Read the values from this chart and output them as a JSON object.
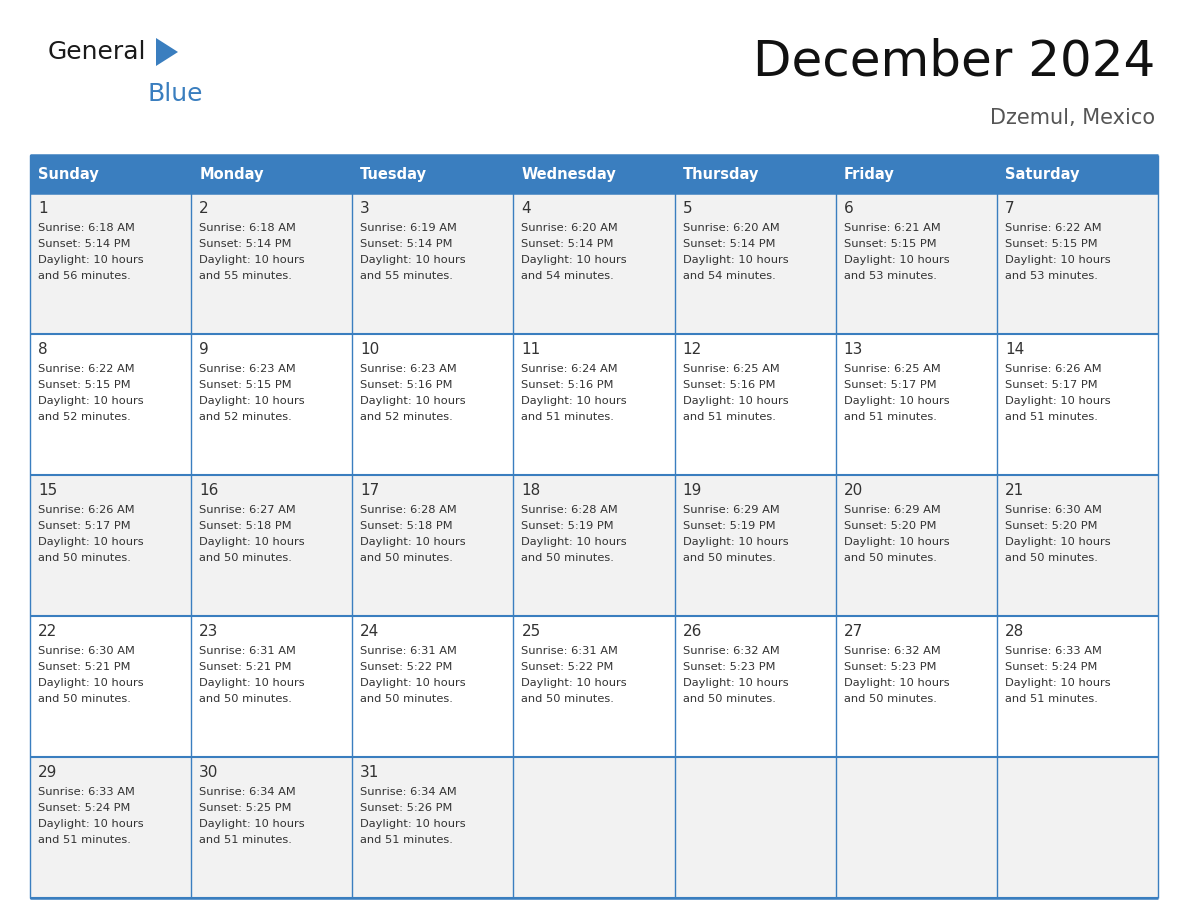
{
  "title": "December 2024",
  "subtitle": "Dzemul, Mexico",
  "header_color": "#3a7ebf",
  "header_text_color": "#ffffff",
  "day_names": [
    "Sunday",
    "Monday",
    "Tuesday",
    "Wednesday",
    "Thursday",
    "Friday",
    "Saturday"
  ],
  "row_bg_even": "#f2f2f2",
  "row_bg_odd": "#ffffff",
  "border_color": "#3a7ebf",
  "text_color": "#333333",
  "days": [
    {
      "day": 1,
      "col": 0,
      "row": 0,
      "sunrise": "6:18 AM",
      "sunset": "5:14 PM",
      "dl_hours": 10,
      "dl_minutes": 56
    },
    {
      "day": 2,
      "col": 1,
      "row": 0,
      "sunrise": "6:18 AM",
      "sunset": "5:14 PM",
      "dl_hours": 10,
      "dl_minutes": 55
    },
    {
      "day": 3,
      "col": 2,
      "row": 0,
      "sunrise": "6:19 AM",
      "sunset": "5:14 PM",
      "dl_hours": 10,
      "dl_minutes": 55
    },
    {
      "day": 4,
      "col": 3,
      "row": 0,
      "sunrise": "6:20 AM",
      "sunset": "5:14 PM",
      "dl_hours": 10,
      "dl_minutes": 54
    },
    {
      "day": 5,
      "col": 4,
      "row": 0,
      "sunrise": "6:20 AM",
      "sunset": "5:14 PM",
      "dl_hours": 10,
      "dl_minutes": 54
    },
    {
      "day": 6,
      "col": 5,
      "row": 0,
      "sunrise": "6:21 AM",
      "sunset": "5:15 PM",
      "dl_hours": 10,
      "dl_minutes": 53
    },
    {
      "day": 7,
      "col": 6,
      "row": 0,
      "sunrise": "6:22 AM",
      "sunset": "5:15 PM",
      "dl_hours": 10,
      "dl_minutes": 53
    },
    {
      "day": 8,
      "col": 0,
      "row": 1,
      "sunrise": "6:22 AM",
      "sunset": "5:15 PM",
      "dl_hours": 10,
      "dl_minutes": 52
    },
    {
      "day": 9,
      "col": 1,
      "row": 1,
      "sunrise": "6:23 AM",
      "sunset": "5:15 PM",
      "dl_hours": 10,
      "dl_minutes": 52
    },
    {
      "day": 10,
      "col": 2,
      "row": 1,
      "sunrise": "6:23 AM",
      "sunset": "5:16 PM",
      "dl_hours": 10,
      "dl_minutes": 52
    },
    {
      "day": 11,
      "col": 3,
      "row": 1,
      "sunrise": "6:24 AM",
      "sunset": "5:16 PM",
      "dl_hours": 10,
      "dl_minutes": 51
    },
    {
      "day": 12,
      "col": 4,
      "row": 1,
      "sunrise": "6:25 AM",
      "sunset": "5:16 PM",
      "dl_hours": 10,
      "dl_minutes": 51
    },
    {
      "day": 13,
      "col": 5,
      "row": 1,
      "sunrise": "6:25 AM",
      "sunset": "5:17 PM",
      "dl_hours": 10,
      "dl_minutes": 51
    },
    {
      "day": 14,
      "col": 6,
      "row": 1,
      "sunrise": "6:26 AM",
      "sunset": "5:17 PM",
      "dl_hours": 10,
      "dl_minutes": 51
    },
    {
      "day": 15,
      "col": 0,
      "row": 2,
      "sunrise": "6:26 AM",
      "sunset": "5:17 PM",
      "dl_hours": 10,
      "dl_minutes": 50
    },
    {
      "day": 16,
      "col": 1,
      "row": 2,
      "sunrise": "6:27 AM",
      "sunset": "5:18 PM",
      "dl_hours": 10,
      "dl_minutes": 50
    },
    {
      "day": 17,
      "col": 2,
      "row": 2,
      "sunrise": "6:28 AM",
      "sunset": "5:18 PM",
      "dl_hours": 10,
      "dl_minutes": 50
    },
    {
      "day": 18,
      "col": 3,
      "row": 2,
      "sunrise": "6:28 AM",
      "sunset": "5:19 PM",
      "dl_hours": 10,
      "dl_minutes": 50
    },
    {
      "day": 19,
      "col": 4,
      "row": 2,
      "sunrise": "6:29 AM",
      "sunset": "5:19 PM",
      "dl_hours": 10,
      "dl_minutes": 50
    },
    {
      "day": 20,
      "col": 5,
      "row": 2,
      "sunrise": "6:29 AM",
      "sunset": "5:20 PM",
      "dl_hours": 10,
      "dl_minutes": 50
    },
    {
      "day": 21,
      "col": 6,
      "row": 2,
      "sunrise": "6:30 AM",
      "sunset": "5:20 PM",
      "dl_hours": 10,
      "dl_minutes": 50
    },
    {
      "day": 22,
      "col": 0,
      "row": 3,
      "sunrise": "6:30 AM",
      "sunset": "5:21 PM",
      "dl_hours": 10,
      "dl_minutes": 50
    },
    {
      "day": 23,
      "col": 1,
      "row": 3,
      "sunrise": "6:31 AM",
      "sunset": "5:21 PM",
      "dl_hours": 10,
      "dl_minutes": 50
    },
    {
      "day": 24,
      "col": 2,
      "row": 3,
      "sunrise": "6:31 AM",
      "sunset": "5:22 PM",
      "dl_hours": 10,
      "dl_minutes": 50
    },
    {
      "day": 25,
      "col": 3,
      "row": 3,
      "sunrise": "6:31 AM",
      "sunset": "5:22 PM",
      "dl_hours": 10,
      "dl_minutes": 50
    },
    {
      "day": 26,
      "col": 4,
      "row": 3,
      "sunrise": "6:32 AM",
      "sunset": "5:23 PM",
      "dl_hours": 10,
      "dl_minutes": 50
    },
    {
      "day": 27,
      "col": 5,
      "row": 3,
      "sunrise": "6:32 AM",
      "sunset": "5:23 PM",
      "dl_hours": 10,
      "dl_minutes": 50
    },
    {
      "day": 28,
      "col": 6,
      "row": 3,
      "sunrise": "6:33 AM",
      "sunset": "5:24 PM",
      "dl_hours": 10,
      "dl_minutes": 51
    },
    {
      "day": 29,
      "col": 0,
      "row": 4,
      "sunrise": "6:33 AM",
      "sunset": "5:24 PM",
      "dl_hours": 10,
      "dl_minutes": 51
    },
    {
      "day": 30,
      "col": 1,
      "row": 4,
      "sunrise": "6:34 AM",
      "sunset": "5:25 PM",
      "dl_hours": 10,
      "dl_minutes": 51
    },
    {
      "day": 31,
      "col": 2,
      "row": 4,
      "sunrise": "6:34 AM",
      "sunset": "5:26 PM",
      "dl_hours": 10,
      "dl_minutes": 51
    }
  ],
  "num_rows": 5,
  "logo_color_general": "#1a1a1a",
  "logo_color_blue": "#3a7ebf"
}
